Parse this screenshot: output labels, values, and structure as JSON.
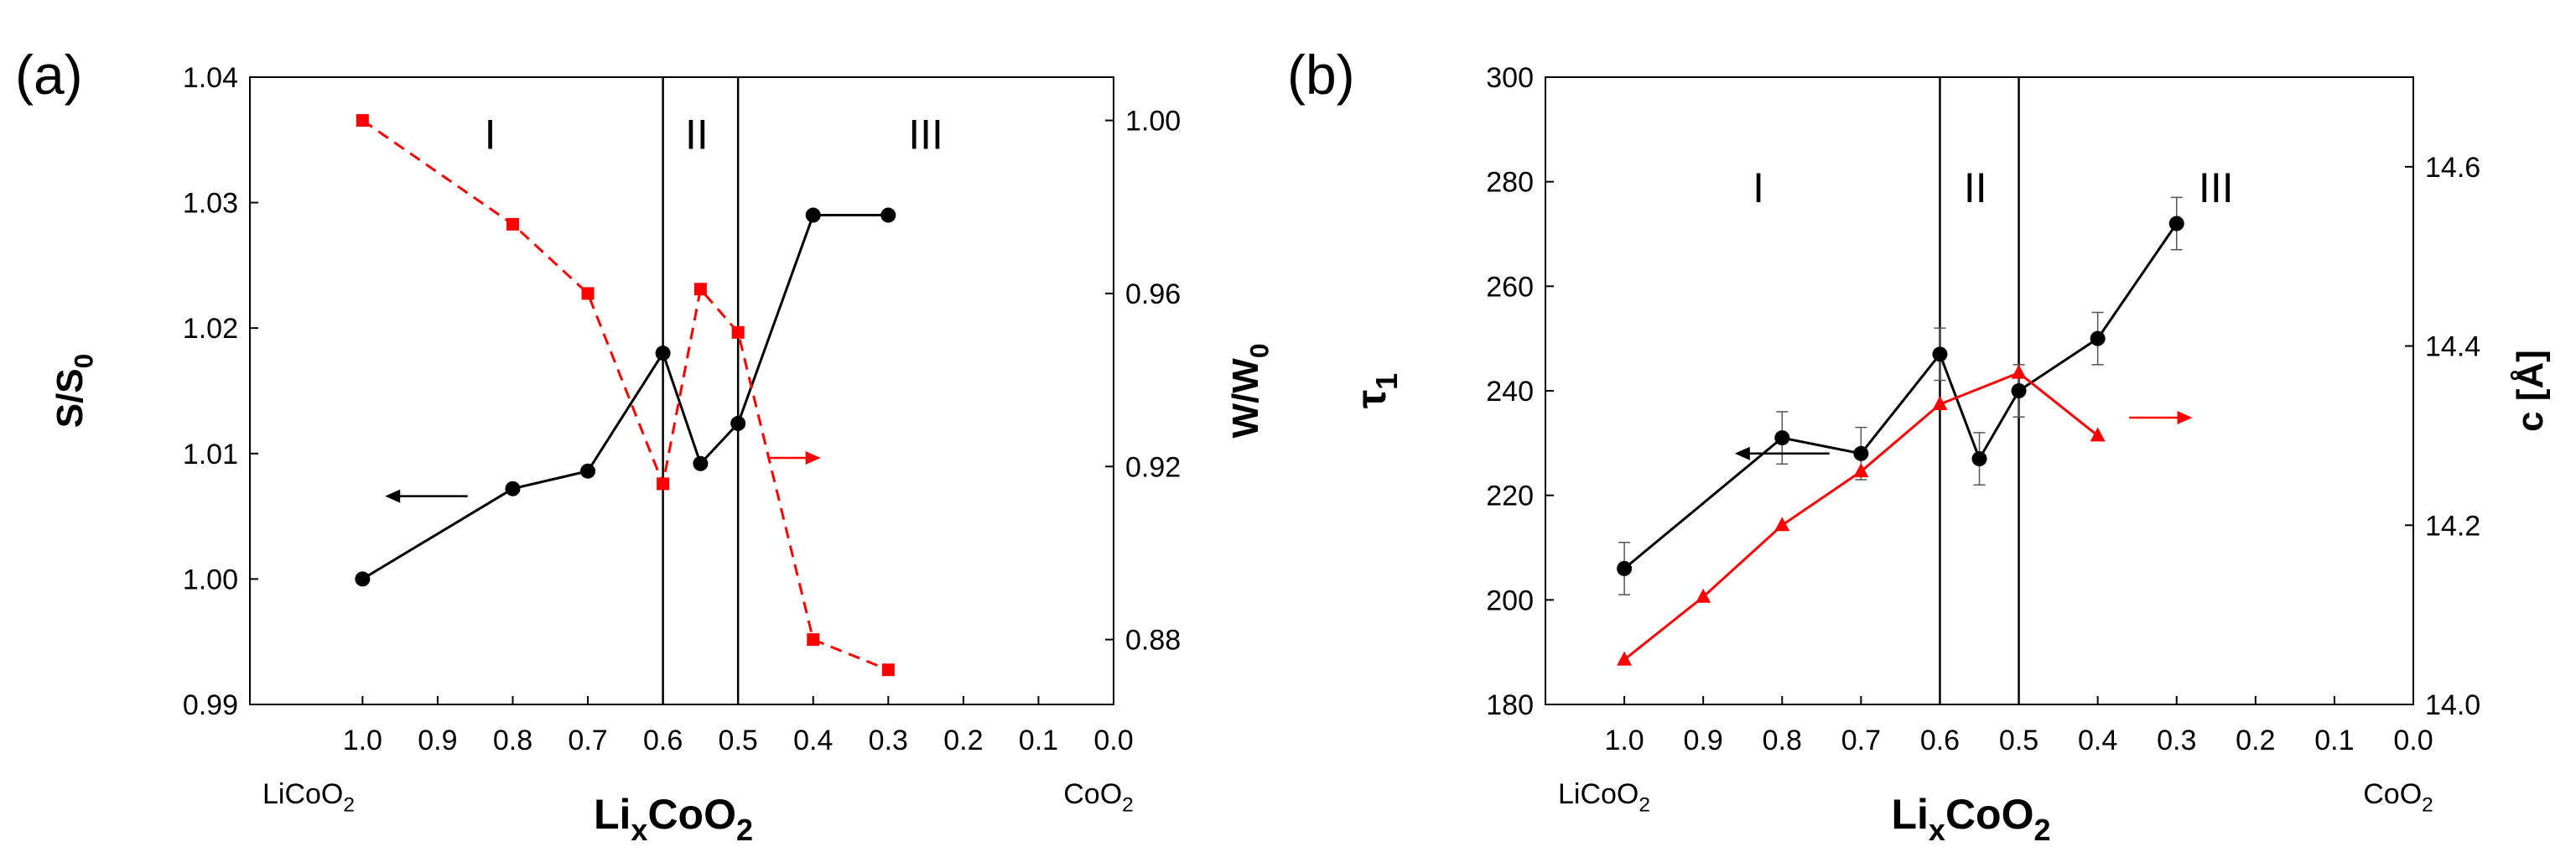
{
  "chart_data": [
    {
      "panel": "(a)",
      "type": "line",
      "title": "",
      "xlabel": "LixCoO2",
      "xlabel_main": "Li",
      "xlabel_sub": "x",
      "xlabel_tail": "CoO",
      "xlabel_sub2": "2",
      "xlim": [
        1.15,
        0.0
      ],
      "x_ticks": [
        "1.0",
        "0.9",
        "0.8",
        "0.7",
        "0.6",
        "0.5",
        "0.4",
        "0.3",
        "0.2",
        "0.1",
        "0.0"
      ],
      "x_tick_values": [
        1.0,
        0.9,
        0.8,
        0.7,
        0.6,
        0.5,
        0.4,
        0.3,
        0.2,
        0.1,
        0.0
      ],
      "x_end_left": "LiCoO",
      "x_end_left_sub": "2",
      "x_end_right": "CoO",
      "x_end_right_sub": "2",
      "ylabel": "S/S0",
      "ylabel_main": "S/S",
      "ylabel_sub": "0",
      "ylim": [
        0.99,
        1.04
      ],
      "y_ticks": [
        "0.99",
        "1.00",
        "1.01",
        "1.02",
        "1.03",
        "1.04"
      ],
      "y_tick_values": [
        0.99,
        1.0,
        1.01,
        1.02,
        1.03,
        1.04
      ],
      "y2label": "W/W0",
      "y2label_main": "W/W",
      "y2label_sub": "0",
      "y2lim": [
        0.865,
        1.01
      ],
      "y2_ticks": [
        "0.88",
        "0.92",
        "0.96",
        "1.00"
      ],
      "y2_tick_values": [
        0.88,
        0.92,
        0.96,
        1.0
      ],
      "vlines": [
        0.6,
        0.5
      ],
      "regions": [
        {
          "label": "I",
          "x": 0.83,
          "y": 1.0355
        },
        {
          "label": "II",
          "x": 0.555,
          "y": 1.0355
        },
        {
          "label": "III",
          "x": 0.25,
          "y": 1.0355
        }
      ],
      "series": [
        {
          "name": "S/S0",
          "axis": "left",
          "color": "#000000",
          "style": "solid",
          "marker": "circle",
          "x": [
            1.0,
            0.8,
            0.7,
            0.6,
            0.55,
            0.5,
            0.4,
            0.3
          ],
          "y": [
            1.0,
            1.0072,
            1.0086,
            1.018,
            1.0092,
            1.0124,
            1.029,
            1.029
          ]
        },
        {
          "name": "W/W0",
          "axis": "right",
          "color": "#ff0000",
          "style": "dashed",
          "marker": "square",
          "x": [
            1.0,
            0.8,
            0.7,
            0.6,
            0.55,
            0.5,
            0.4,
            0.3
          ],
          "y": [
            1.0,
            0.976,
            0.96,
            0.916,
            0.961,
            0.951,
            0.88,
            0.873
          ]
        }
      ],
      "arrows": [
        {
          "axis": "left",
          "color": "#000000",
          "x_from": 0.86,
          "x_to": 0.97,
          "y": 1.0066
        },
        {
          "axis": "right",
          "color": "#ff0000",
          "x_from": 0.46,
          "x_to": 0.39,
          "y": 0.922
        }
      ]
    },
    {
      "panel": "(b)",
      "type": "line",
      "title": "",
      "xlabel": "LixCoO2",
      "xlabel_main": "Li",
      "xlabel_sub": "x",
      "xlabel_tail": "CoO",
      "xlabel_sub2": "2",
      "xlim": [
        1.1,
        0.0
      ],
      "x_ticks": [
        "1.0",
        "0.9",
        "0.8",
        "0.7",
        "0.6",
        "0.5",
        "0.4",
        "0.3",
        "0.2",
        "0.1",
        "0.0"
      ],
      "x_tick_values": [
        1.0,
        0.9,
        0.8,
        0.7,
        0.6,
        0.5,
        0.4,
        0.3,
        0.2,
        0.1,
        0.0
      ],
      "x_end_left": "LiCoO",
      "x_end_left_sub": "2",
      "x_end_right": "CoO",
      "x_end_right_sub": "2",
      "ylabel": "τ1",
      "ylabel_main": "τ",
      "ylabel_sub": "1",
      "ylim": [
        180,
        300
      ],
      "y_ticks": [
        "180",
        "200",
        "220",
        "240",
        "260",
        "280",
        "300"
      ],
      "y_tick_values": [
        180,
        200,
        220,
        240,
        260,
        280,
        300
      ],
      "y2label": "c [Å]",
      "y2lim": [
        14.0,
        14.7
      ],
      "y2_ticks": [
        "14.0",
        "14.2",
        "14.4",
        "14.6"
      ],
      "y2_tick_values": [
        14.0,
        14.2,
        14.4,
        14.6
      ],
      "vlines": [
        0.6,
        0.5
      ],
      "regions": [
        {
          "label": "I",
          "x": 0.83,
          "y": 279
        },
        {
          "label": "II",
          "x": 0.555,
          "y": 279
        },
        {
          "label": "III",
          "x": 0.25,
          "y": 279
        }
      ],
      "series": [
        {
          "name": "τ1",
          "axis": "left",
          "color": "#000000",
          "style": "solid",
          "marker": "circle",
          "x": [
            1.0,
            0.8,
            0.7,
            0.6,
            0.55,
            0.5,
            0.4,
            0.3
          ],
          "y": [
            206,
            231,
            228,
            247,
            227,
            240,
            250,
            272
          ],
          "err": [
            5,
            5,
            5,
            5,
            5,
            5,
            5,
            5
          ]
        },
        {
          "name": "c",
          "axis": "right",
          "color": "#ff0000",
          "style": "solid",
          "marker": "triangle",
          "x": [
            1.0,
            0.9,
            0.8,
            0.7,
            0.6,
            0.5,
            0.4
          ],
          "y": [
            14.05,
            14.12,
            14.2,
            14.26,
            14.335,
            14.37,
            14.3
          ]
        }
      ],
      "arrows": [
        {
          "axis": "left",
          "color": "#000000",
          "x_from": 0.74,
          "x_to": 0.86,
          "y": 228
        },
        {
          "axis": "right",
          "color": "#ff0000",
          "x_from": 0.36,
          "x_to": 0.28,
          "y": 14.32
        }
      ]
    }
  ]
}
